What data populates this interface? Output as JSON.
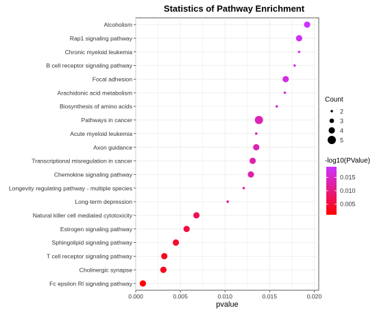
{
  "chart_data": {
    "type": "scatter",
    "title": "Statistics of Pathway Enrichment",
    "xlabel": "pvalue",
    "ylabel": "",
    "xlim": [
      0.0,
      0.0205
    ],
    "xticks": [
      "0.000",
      "0.005",
      "0.010",
      "0.015",
      "0.020"
    ],
    "xtick_values": [
      0.0,
      0.005,
      0.01,
      0.015,
      0.02
    ],
    "grid": true,
    "points": [
      {
        "label": "Alcoholism",
        "pvalue": 0.0192,
        "count": 4
      },
      {
        "label": "Rap1 signaling pathway",
        "pvalue": 0.0183,
        "count": 4
      },
      {
        "label": "Chronic myeloid leukemia",
        "pvalue": 0.0183,
        "count": 2
      },
      {
        "label": "B cell receptor signaling pathway",
        "pvalue": 0.0178,
        "count": 2
      },
      {
        "label": "Focal adhesion",
        "pvalue": 0.0168,
        "count": 4
      },
      {
        "label": "Arachidonic acid metabolism",
        "pvalue": 0.0167,
        "count": 2
      },
      {
        "label": "Biosynthesis of amino acids",
        "pvalue": 0.0158,
        "count": 2
      },
      {
        "label": "Pathways in cancer",
        "pvalue": 0.0138,
        "count": 5
      },
      {
        "label": "Acute myeloid leukemia",
        "pvalue": 0.0135,
        "count": 2
      },
      {
        "label": "Axon guidance",
        "pvalue": 0.0135,
        "count": 4
      },
      {
        "label": "Transcriptional misregulation in cancer",
        "pvalue": 0.0131,
        "count": 4
      },
      {
        "label": "Chemokine signaling pathway",
        "pvalue": 0.0129,
        "count": 4
      },
      {
        "label": "Longevity regulating pathway - multiple species",
        "pvalue": 0.0121,
        "count": 2
      },
      {
        "label": "Long-term depression",
        "pvalue": 0.0103,
        "count": 2
      },
      {
        "label": "Natural killer cell mediated cytotoxicity",
        "pvalue": 0.0068,
        "count": 4
      },
      {
        "label": "Estrogen signaling pathway",
        "pvalue": 0.0057,
        "count": 4
      },
      {
        "label": "Sphingolipid signaling pathway",
        "pvalue": 0.0045,
        "count": 4
      },
      {
        "label": "T cell receptor signaling pathway",
        "pvalue": 0.0032,
        "count": 4
      },
      {
        "label": "Cholinergic synapse",
        "pvalue": 0.0031,
        "count": 4
      },
      {
        "label": "Fc epsilon RI signaling pathway",
        "pvalue": 0.0008,
        "count": 4
      }
    ],
    "size_legend": {
      "title": "Count",
      "entries": [
        2,
        3,
        4,
        5
      ],
      "labels": [
        "2",
        "3",
        "4",
        "5"
      ]
    },
    "color_legend": {
      "title": "-log10(PValue)",
      "low_color": "#ff0000",
      "high_color": "#cc33ff",
      "range": [
        0.001,
        0.019
      ],
      "ticks": [
        0.005,
        0.01,
        0.015
      ],
      "tick_labels": [
        "0.005",
        "0.010",
        "0.015"
      ]
    },
    "colors": {
      "panel_bg": "#ffffff",
      "grid": "#ebebeb",
      "axis": "#333333"
    }
  }
}
